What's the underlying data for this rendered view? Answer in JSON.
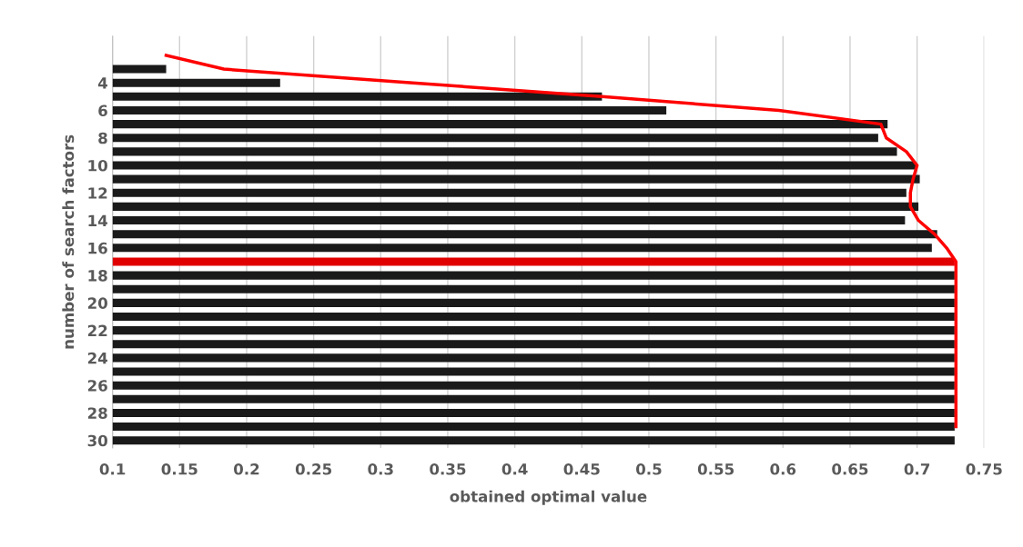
{
  "chart_data": {
    "type": "bar",
    "orientation": "horizontal",
    "xlabel": "obtained optimal value",
    "ylabel": "number of search factors",
    "categories": [
      null,
      null,
      "4",
      null,
      "6",
      null,
      "8",
      null,
      "10",
      null,
      "12",
      null,
      "14",
      null,
      "16",
      null,
      "18",
      null,
      "20",
      null,
      "22",
      null,
      "24",
      null,
      "26",
      null,
      "28",
      null,
      "30"
    ],
    "series": [
      {
        "colors": [
          null,
          "#1a1a1a",
          "#1a1a1a",
          "#1a1a1a",
          "#1a1a1a",
          "#1a1a1a",
          "#1a1a1a",
          "#1a1a1a",
          "#1a1a1a",
          "#1a1a1a",
          "#1a1a1a",
          "#1a1a1a",
          "#1a1a1a",
          "#1a1a1a",
          "#1a1a1a",
          "#e00000",
          "#1a1a1a",
          "#1a1a1a",
          "#1a1a1a",
          "#1a1a1a",
          "#1a1a1a",
          "#1a1a1a",
          "#1a1a1a",
          "#1a1a1a",
          "#1a1a1a",
          "#1a1a1a",
          "#1a1a1a",
          "#1a1a1a",
          "#1a1a1a"
        ],
        "values": [
          null,
          0.14,
          0.225,
          0.465,
          0.513,
          0.678,
          0.671,
          0.685,
          0.699,
          0.702,
          0.692,
          0.701,
          0.691,
          0.715,
          0.711,
          0.728,
          0.728,
          0.728,
          0.728,
          0.728,
          0.728,
          0.728,
          0.728,
          0.728,
          0.728,
          0.728,
          0.728,
          0.728,
          0.728
        ]
      },
      {
        "type": "line",
        "color": "#ff0000",
        "values": [
          0.14,
          0.183,
          0.324,
          0.465,
          0.597,
          0.673,
          0.677,
          0.692,
          0.7,
          0.697,
          0.695,
          0.695,
          0.701,
          0.713,
          0.722,
          0.729,
          0.729,
          0.729,
          0.729,
          0.729,
          0.729,
          0.729,
          0.729,
          0.729,
          0.729,
          0.729,
          0.729,
          0.729,
          null
        ]
      }
    ],
    "xlim": [
      0.1,
      0.75
    ],
    "xticks": [
      0.1,
      0.15,
      0.2,
      0.25,
      0.3,
      0.35,
      0.4,
      0.45,
      0.5,
      0.55,
      0.6,
      0.65,
      0.7,
      0.75
    ],
    "grid": "x"
  }
}
